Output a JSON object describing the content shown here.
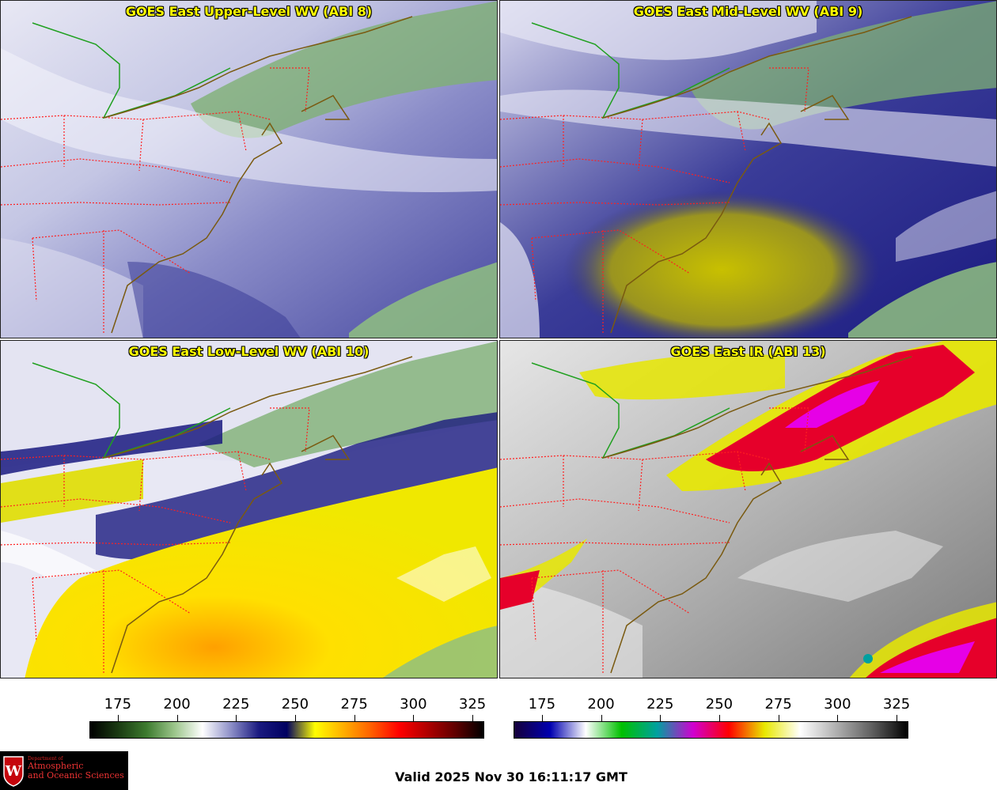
{
  "panels": [
    {
      "title": "GOES East Upper-Level WV (ABI 8)",
      "product": "upper-wv"
    },
    {
      "title": "GOES East Mid-Level WV (ABI 9)",
      "product": "mid-wv"
    },
    {
      "title": "GOES East Low-Level WV (ABI 10)",
      "product": "low-wv"
    },
    {
      "title": "GOES East IR (ABI 13)",
      "product": "ir"
    }
  ],
  "colorbars": {
    "wv": {
      "ticks": [
        "175",
        "200",
        "225",
        "250",
        "275",
        "300",
        "325"
      ],
      "tick_values": [
        175,
        200,
        225,
        250,
        275,
        300,
        325
      ],
      "range": [
        163,
        330
      ],
      "colors": [
        "#000000",
        "#1a3a12",
        "#3c7a2e",
        "#9bc58a",
        "#ffffff",
        "#8e90c8",
        "#1a1a80",
        "#000060",
        "#fffe00",
        "#ffb000",
        "#ff6000",
        "#ff0000",
        "#b00000",
        "#600000",
        "#000000"
      ]
    },
    "ir": {
      "ticks": [
        "175",
        "200",
        "225",
        "250",
        "275",
        "300",
        "325"
      ],
      "tick_values": [
        175,
        200,
        225,
        250,
        275,
        300,
        325
      ],
      "range": [
        163,
        330
      ],
      "colors": [
        "#15003a",
        "#0000b0",
        "#ffffff",
        "#00c000",
        "#00a0a0",
        "#d000d0",
        "#ff0000",
        "#e8e800",
        "#ffffff",
        "#b0b0b0",
        "#606060",
        "#000000"
      ]
    }
  },
  "logo": {
    "line1": "Department of",
    "line2": "Atmospheric",
    "line3": "and Oceanic Sciences",
    "seal_letter": "W"
  },
  "valid_time": "Valid 2025 Nov 30 16:11:17 GMT",
  "colors": {
    "title": "#ffff00",
    "state_borders": "#ff2020",
    "coastline": "#7a5a10",
    "canada_border": "#20a020"
  }
}
